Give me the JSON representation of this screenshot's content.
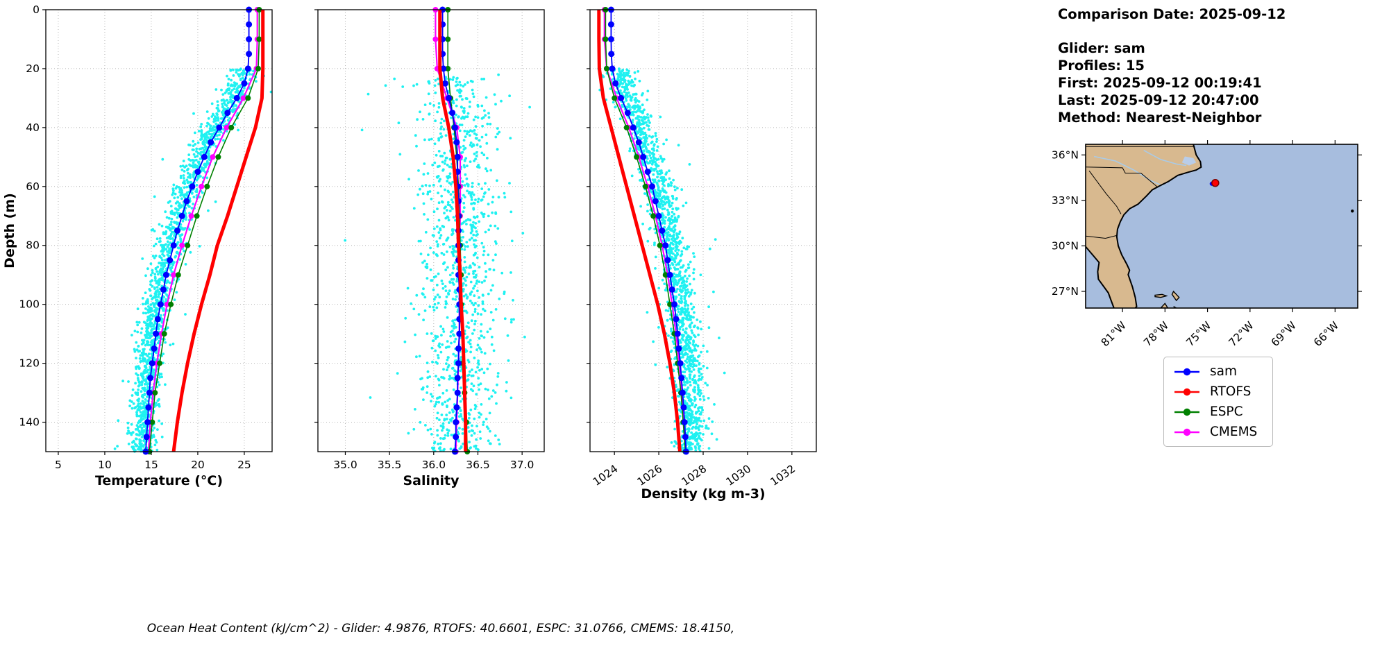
{
  "caption": "Ocean Heat Content (kJ/cm^2) - Glider: 4.9876,  RTOFS: 40.6601,  ESPC: 31.0766,  CMEMS: 18.4150,",
  "info": {
    "comparison_date": "Comparison Date: 2025-09-12",
    "glider": "Glider: sam",
    "profiles": "Profiles: 15",
    "first": "First: 2025-09-12 00:19:41",
    "last": "Last: 2025-09-12 20:47:00",
    "method": "Method: Nearest-Neighbor"
  },
  "legend": {
    "items": [
      {
        "label": "sam",
        "color": "#0000ff"
      },
      {
        "label": "RTOFS",
        "color": "#ff0000"
      },
      {
        "label": "ESPC",
        "color": "#008000"
      },
      {
        "label": "CMEMS",
        "color": "#ff00ff"
      }
    ]
  },
  "chart_data": [
    {
      "id": "temperature-profile",
      "type": "line",
      "title": "",
      "xlabel": "Temperature (°C)",
      "ylabel": "Depth (m)",
      "xlim": [
        3.66,
        27.99
      ],
      "ylim": [
        0,
        150
      ],
      "grid": true,
      "xticks": [
        5,
        10,
        15,
        20,
        25
      ],
      "xtick_labels": [
        "5",
        "10",
        "15",
        "20",
        "25"
      ],
      "yticks": [
        0,
        20,
        40,
        60,
        80,
        100,
        120,
        140
      ],
      "ytick_labels": [
        "0",
        "20",
        "40",
        "60",
        "80",
        "100",
        "120",
        "140"
      ],
      "rotate_xticks": false,
      "scatter": {
        "name": "glider-raw-observations",
        "color": "#00f0f0",
        "count": 1600,
        "depth_range": [
          20,
          150
        ],
        "offset": -0.4,
        "spread": 0.75
      },
      "series": [
        {
          "name": "sam",
          "color": "#0000ff",
          "lw": 1.8,
          "marker": 4.5,
          "depths": [
            0,
            5,
            10,
            15,
            20,
            25,
            30,
            35,
            40,
            45,
            50,
            55,
            60,
            65,
            70,
            75,
            80,
            85,
            90,
            95,
            100,
            105,
            110,
            115,
            120,
            125,
            130,
            135,
            140,
            145,
            150
          ],
          "values": [
            25.5,
            25.5,
            25.5,
            25.5,
            25.4,
            25.0,
            24.2,
            23.2,
            22.3,
            21.4,
            20.7,
            20.0,
            19.4,
            18.8,
            18.3,
            17.8,
            17.4,
            17.0,
            16.6,
            16.3,
            16.0,
            15.7,
            15.5,
            15.3,
            15.1,
            14.9,
            14.8,
            14.7,
            14.6,
            14.5,
            14.4
          ]
        },
        {
          "name": "RTOFS",
          "color": "#ff0000",
          "lw": 5,
          "marker": 0,
          "depths": [
            0,
            10,
            20,
            30,
            40,
            50,
            60,
            70,
            80,
            90,
            100,
            110,
            120,
            130,
            140,
            150
          ],
          "values": [
            27.0,
            27.0,
            27.0,
            26.9,
            26.2,
            25.2,
            24.2,
            23.2,
            22.1,
            21.3,
            20.4,
            19.6,
            18.9,
            18.3,
            17.8,
            17.4
          ]
        },
        {
          "name": "ESPC",
          "color": "#008000",
          "lw": 1.6,
          "marker": 4,
          "depths": [
            0,
            10,
            20,
            30,
            40,
            50,
            60,
            70,
            80,
            90,
            100,
            110,
            120,
            130,
            140,
            150
          ],
          "values": [
            26.6,
            26.6,
            26.5,
            25.4,
            23.6,
            22.2,
            21.0,
            19.9,
            18.9,
            17.9,
            17.1,
            16.4,
            15.9,
            15.4,
            15.1,
            14.8
          ]
        },
        {
          "name": "CMEMS",
          "color": "#ff00ff",
          "lw": 2.2,
          "marker": 4,
          "depths": [
            0,
            10,
            20,
            30,
            40,
            50,
            60,
            70,
            80,
            90,
            100,
            110,
            120,
            130,
            140,
            150
          ],
          "values": [
            26.4,
            26.4,
            26.3,
            24.9,
            23.1,
            21.6,
            20.4,
            19.3,
            18.3,
            17.4,
            16.7,
            16.1,
            15.6,
            15.2,
            14.9,
            14.7
          ]
        }
      ]
    },
    {
      "id": "salinity-profile",
      "type": "line",
      "title": "",
      "xlabel": "Salinity",
      "ylabel": "",
      "xlim": [
        34.69,
        37.25
      ],
      "ylim": [
        0,
        150
      ],
      "grid": true,
      "xticks": [
        35.0,
        35.5,
        36.0,
        36.5,
        37.0
      ],
      "xtick_labels": [
        "35.0",
        "35.5",
        "36.0",
        "36.5",
        "37.0"
      ],
      "yticks": [
        0,
        20,
        40,
        60,
        80,
        100,
        120,
        140
      ],
      "ytick_labels": [
        "0",
        "20",
        "40",
        "60",
        "80",
        "100",
        "120",
        "140"
      ],
      "rotate_xticks": false,
      "scatter": {
        "name": "glider-raw-observations",
        "color": "#00f0f0",
        "count": 1100,
        "depth_range": [
          22,
          150
        ],
        "offset": 0.0,
        "spread": 0.22
      },
      "series": [
        {
          "name": "sam",
          "color": "#0000ff",
          "lw": 1.8,
          "marker": 4.5,
          "depths": [
            0,
            5,
            10,
            15,
            20,
            25,
            30,
            35,
            40,
            45,
            50,
            55,
            60,
            65,
            70,
            75,
            80,
            85,
            90,
            95,
            100,
            105,
            110,
            115,
            120,
            125,
            130,
            135,
            140,
            145,
            150
          ],
          "values": [
            36.1,
            36.1,
            36.1,
            36.1,
            36.11,
            36.13,
            36.17,
            36.21,
            36.24,
            36.26,
            36.27,
            36.27,
            36.27,
            36.28,
            36.28,
            36.28,
            36.28,
            36.28,
            36.28,
            36.29,
            36.29,
            36.29,
            36.29,
            36.28,
            36.28,
            36.27,
            36.27,
            36.26,
            36.25,
            36.25,
            36.24
          ]
        },
        {
          "name": "RTOFS",
          "color": "#ff0000",
          "lw": 5,
          "marker": 0,
          "depths": [
            0,
            10,
            20,
            30,
            40,
            50,
            60,
            70,
            80,
            90,
            100,
            110,
            120,
            130,
            140,
            150
          ],
          "values": [
            36.07,
            36.07,
            36.07,
            36.1,
            36.17,
            36.22,
            36.25,
            36.27,
            36.28,
            36.3,
            36.31,
            36.33,
            36.34,
            36.35,
            36.36,
            36.36
          ]
        },
        {
          "name": "ESPC",
          "color": "#008000",
          "lw": 1.6,
          "marker": 4,
          "depths": [
            0,
            10,
            20,
            30,
            40,
            50,
            60,
            70,
            80,
            90,
            100,
            110,
            120,
            130,
            140,
            150
          ],
          "values": [
            36.16,
            36.16,
            36.16,
            36.19,
            36.23,
            36.26,
            36.28,
            36.29,
            36.3,
            36.31,
            36.31,
            36.32,
            36.33,
            36.35,
            36.37,
            36.38
          ]
        },
        {
          "name": "CMEMS",
          "color": "#ff00ff",
          "lw": 2.2,
          "marker": 4,
          "depths": [
            0,
            10,
            20,
            30,
            40,
            50,
            60,
            70,
            80,
            90,
            100,
            110,
            120,
            130,
            140,
            150
          ],
          "values": [
            36.02,
            36.02,
            36.04,
            36.15,
            36.26,
            36.3,
            36.3,
            36.3,
            36.29,
            36.29,
            36.29,
            36.29,
            36.28,
            36.27,
            36.26,
            36.25
          ]
        }
      ]
    },
    {
      "id": "density-profile",
      "type": "line",
      "title": "",
      "xlabel": "Density (kg m-3)",
      "ylabel": "",
      "xlim": [
        1022.9,
        1033.1
      ],
      "ylim": [
        0,
        150
      ],
      "grid": true,
      "xticks": [
        1024,
        1026,
        1028,
        1030,
        1032
      ],
      "xtick_labels": [
        "1024",
        "1026",
        "1028",
        "1030",
        "1032"
      ],
      "yticks": [
        0,
        20,
        40,
        60,
        80,
        100,
        120,
        140
      ],
      "ytick_labels": [
        "0",
        "20",
        "40",
        "60",
        "80",
        "100",
        "120",
        "140"
      ],
      "rotate_xticks": true,
      "scatter": {
        "name": "glider-raw-observations",
        "color": "#00f0f0",
        "count": 1600,
        "depth_range": [
          20,
          150
        ],
        "offset": 0.3,
        "spread": 0.35
      },
      "series": [
        {
          "name": "sam",
          "color": "#0000ff",
          "lw": 1.8,
          "marker": 4.5,
          "depths": [
            0,
            5,
            10,
            15,
            20,
            25,
            30,
            35,
            40,
            45,
            50,
            55,
            60,
            65,
            70,
            75,
            80,
            85,
            90,
            95,
            100,
            105,
            110,
            115,
            120,
            125,
            130,
            135,
            140,
            145,
            150
          ],
          "values": [
            1023.85,
            1023.85,
            1023.85,
            1023.86,
            1023.9,
            1024.05,
            1024.3,
            1024.6,
            1024.85,
            1025.1,
            1025.3,
            1025.5,
            1025.7,
            1025.85,
            1026.0,
            1026.15,
            1026.3,
            1026.4,
            1026.5,
            1026.6,
            1026.7,
            1026.78,
            1026.85,
            1026.9,
            1026.97,
            1027.02,
            1027.07,
            1027.12,
            1027.16,
            1027.2,
            1027.23
          ]
        },
        {
          "name": "RTOFS",
          "color": "#ff0000",
          "lw": 5,
          "marker": 0,
          "depths": [
            0,
            10,
            20,
            30,
            40,
            50,
            60,
            70,
            80,
            90,
            100,
            110,
            120,
            130,
            140,
            150
          ],
          "values": [
            1023.3,
            1023.3,
            1023.32,
            1023.5,
            1023.85,
            1024.2,
            1024.55,
            1024.9,
            1025.25,
            1025.6,
            1025.95,
            1026.25,
            1026.5,
            1026.7,
            1026.85,
            1026.95
          ]
        },
        {
          "name": "ESPC",
          "color": "#008000",
          "lw": 1.6,
          "marker": 4,
          "depths": [
            0,
            10,
            20,
            30,
            40,
            50,
            60,
            70,
            80,
            90,
            100,
            110,
            120,
            130,
            140,
            150
          ],
          "values": [
            1023.6,
            1023.6,
            1023.65,
            1024.0,
            1024.55,
            1025.0,
            1025.4,
            1025.75,
            1026.05,
            1026.3,
            1026.5,
            1026.7,
            1026.85,
            1027.0,
            1027.1,
            1027.2
          ]
        },
        {
          "name": "CMEMS",
          "color": "#ff00ff",
          "lw": 2.2,
          "marker": 4,
          "depths": [
            0,
            10,
            20,
            30,
            40,
            50,
            60,
            70,
            80,
            90,
            100,
            110,
            120,
            130,
            140,
            150
          ],
          "values": [
            1023.55,
            1023.55,
            1023.65,
            1024.1,
            1024.65,
            1025.1,
            1025.5,
            1025.85,
            1026.15,
            1026.4,
            1026.6,
            1026.78,
            1026.92,
            1027.05,
            1027.15,
            1027.22
          ]
        }
      ]
    }
  ],
  "map": {
    "ocean_color": "#a7bdde",
    "land_color": "#d8b98f",
    "extent": {
      "lon": [
        -83.6,
        -64.4
      ],
      "lat": [
        25.9,
        36.7
      ]
    },
    "xticks": [
      -81,
      -78,
      -75,
      -72,
      -69,
      -66
    ],
    "xtick_labels": [
      "81°W",
      "78°W",
      "75°W",
      "72°W",
      "69°W",
      "66°W"
    ],
    "yticks": [
      36,
      33,
      30,
      27
    ],
    "ytick_labels": [
      "36°N",
      "33°N",
      "30°N",
      "27°N"
    ],
    "coast": [
      [
        -76.0,
        36.7
      ],
      [
        -75.8,
        36.0
      ],
      [
        -75.5,
        35.55
      ],
      [
        -75.45,
        35.2
      ],
      [
        -75.8,
        35.0
      ],
      [
        -76.4,
        34.85
      ],
      [
        -77.1,
        34.65
      ],
      [
        -77.75,
        34.25
      ],
      [
        -78.4,
        33.95
      ],
      [
        -78.9,
        33.7
      ],
      [
        -79.3,
        33.3
      ],
      [
        -79.9,
        32.75
      ],
      [
        -80.5,
        32.45
      ],
      [
        -80.9,
        32.05
      ],
      [
        -81.15,
        31.6
      ],
      [
        -81.35,
        31.1
      ],
      [
        -81.4,
        30.6
      ],
      [
        -81.3,
        30.0
      ],
      [
        -81.05,
        29.4
      ],
      [
        -80.7,
        28.8
      ],
      [
        -80.5,
        28.4
      ],
      [
        -80.6,
        28.1
      ],
      [
        -80.3,
        27.3
      ],
      [
        -80.1,
        26.6
      ],
      [
        -80.0,
        26.0
      ],
      [
        -80.1,
        25.9
      ]
    ],
    "west_closure": [
      [
        -81.6,
        25.9
      ],
      [
        -81.8,
        26.4
      ],
      [
        -82.0,
        26.9
      ],
      [
        -82.7,
        27.8
      ],
      [
        -82.75,
        28.3
      ],
      [
        -82.65,
        28.9
      ],
      [
        -83.1,
        29.4
      ],
      [
        -83.6,
        29.95
      ],
      [
        -83.6,
        36.7
      ]
    ],
    "borders": [
      [
        [
          -83.6,
          36.55
        ],
        [
          -75.9,
          36.55
        ]
      ],
      [
        [
          -83.6,
          35.2
        ],
        [
          -81.0,
          35.15
        ],
        [
          -80.8,
          34.8
        ],
        [
          -79.7,
          34.8
        ],
        [
          -78.55,
          33.9
        ]
      ],
      [
        [
          -83.35,
          34.95
        ],
        [
          -82.2,
          33.5
        ],
        [
          -81.4,
          32.6
        ],
        [
          -81.1,
          32.1
        ]
      ],
      [
        [
          -83.6,
          30.65
        ],
        [
          -82.2,
          30.5
        ],
        [
          -81.35,
          30.7
        ]
      ]
    ],
    "rivers": [
      [
        [
          -83.0,
          35.9
        ],
        [
          -81.5,
          35.6
        ],
        [
          -80.2,
          35.0
        ],
        [
          -79.0,
          34.3
        ],
        [
          -78.0,
          33.9
        ]
      ],
      [
        [
          -79.5,
          36.3
        ],
        [
          -78.3,
          35.7
        ],
        [
          -77.2,
          35.4
        ],
        [
          -76.5,
          35.3
        ]
      ]
    ],
    "sound": [
      [
        -76.6,
        35.9
      ],
      [
        -76.0,
        35.8
      ],
      [
        -75.8,
        35.5
      ],
      [
        -76.3,
        35.3
      ],
      [
        -76.8,
        35.5
      ]
    ],
    "islands": [
      [
        [
          -78.7,
          26.75
        ],
        [
          -78.2,
          26.8
        ],
        [
          -77.9,
          26.7
        ],
        [
          -78.3,
          26.6
        ],
        [
          -78.7,
          26.65
        ]
      ],
      [
        [
          -77.4,
          27.0
        ],
        [
          -77.0,
          26.6
        ],
        [
          -77.2,
          26.4
        ],
        [
          -77.5,
          26.8
        ]
      ],
      [
        [
          -78.3,
          25.9
        ],
        [
          -78.0,
          26.2
        ],
        [
          -77.8,
          25.9
        ]
      ],
      [
        [
          -77.4,
          26.0
        ],
        [
          -77.2,
          25.9
        ]
      ]
    ],
    "bermuda": {
      "lon": -64.78,
      "lat": 32.3
    },
    "markers": [
      {
        "name": "espc-location",
        "lon": -74.55,
        "lat": 34.02,
        "color": "#008000",
        "r": 2.5
      },
      {
        "name": "rtofs-location",
        "lon": -74.7,
        "lat": 34.1,
        "color": "#0000ff",
        "r": 3
      },
      {
        "name": "glider-location",
        "lon": -74.45,
        "lat": 34.15,
        "color": "#ff0000",
        "r": 5,
        "edge": "#7a0000"
      }
    ]
  }
}
